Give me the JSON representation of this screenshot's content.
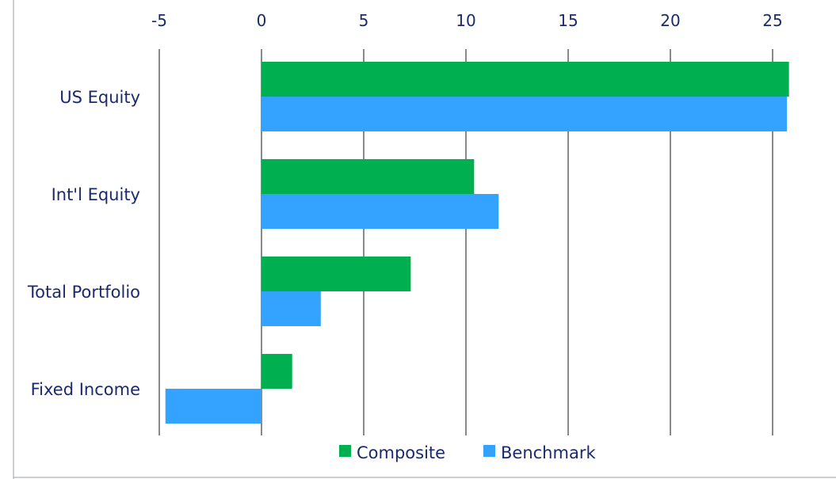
{
  "chart_data": {
    "type": "bar",
    "orientation": "horizontal",
    "title": "",
    "xlabel": "",
    "ylabel": "",
    "categories": [
      "US Equity",
      "Int'l Equity",
      "Total Portfolio",
      "Fixed Income"
    ],
    "series": [
      {
        "name": "Composite",
        "color": "#00b050",
        "values": [
          25.8,
          10.4,
          7.3,
          1.5
        ]
      },
      {
        "name": "Benchmark",
        "color": "#33a3ff",
        "values": [
          25.7,
          11.6,
          2.9,
          -4.7
        ]
      }
    ],
    "xlim": [
      -5,
      27
    ],
    "xticks": [
      -5,
      0,
      5,
      10,
      15,
      20,
      25
    ],
    "xtick_labels": [
      "-5",
      "0",
      "5",
      "10",
      "15",
      "20",
      "25"
    ],
    "x_axis_position": "top",
    "grid": "vertical",
    "legend": "bottom"
  }
}
